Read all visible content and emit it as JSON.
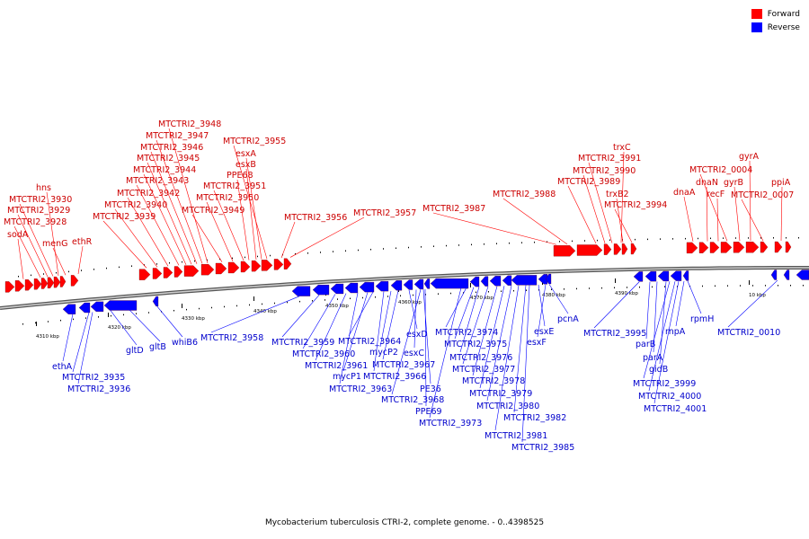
{
  "colors": {
    "forward": "#ff0000",
    "forward_label": "#cc0000",
    "reverse": "#0000ff",
    "reverse_label": "#0000cc",
    "backbone": "#888888"
  },
  "legend": [
    {
      "label": "Forward",
      "color": "#ff0000"
    },
    {
      "label": "Reverse",
      "color": "#0000ff"
    }
  ],
  "caption": "Mycobacterium tuberculosis CTRI-2, complete genome. - 0..4398525",
  "scale_labels": [
    "4310 kbp",
    "4320 kbp",
    "4330 kbp",
    "4340 kbp",
    "4350 kbp",
    "4360 kbp",
    "4370 kbp",
    "4380 kbp",
    "4390 kbp",
    "10 kbp"
  ],
  "forward_genes": [
    "sodA",
    "MTCTRI2_3928",
    "MTCTRI2_3929",
    "MTCTRI2_3930",
    "hns",
    "menG",
    "ethR",
    "MTCTRI2_3939",
    "MTCTRI2_3940",
    "MTCTRI2_3942",
    "MTCTRI2_3943",
    "MTCTRI2_3944",
    "MTCTRI2_3945",
    "MTCTRI2_3946",
    "MTCTRI2_3947",
    "MTCTRI2_3948",
    "MTCTRI2_3949",
    "MTCTRI2_3950",
    "MTCTRI2_3951",
    "PPE68",
    "esxB",
    "esxA",
    "MTCTRI2_3955",
    "MTCTRI2_3956",
    "MTCTRI2_3957",
    "MTCTRI2_3987",
    "MTCTRI2_3988",
    "MTCTRI2_3989",
    "MTCTRI2_3990",
    "MTCTRI2_3991",
    "trxC",
    "trxB2",
    "MTCTRI2_3994",
    "dnaA",
    "dnaN",
    "recF",
    "MTCTRI2_0004",
    "gyrB",
    "gyrA",
    "MTCTRI2_0007",
    "ppiA"
  ],
  "reverse_genes": [
    "ethA",
    "MTCTRI2_3935",
    "MTCTRI2_3936",
    "gltD",
    "gltB",
    "whiB6",
    "MTCTRI2_3958",
    "MTCTRI2_3959",
    "MTCTRI2_3960",
    "MTCTRI2_3961",
    "MTCTRI2_3963",
    "mycP1",
    "MTCTRI2_3964",
    "MTCTRI2_3966",
    "mycP2",
    "MTCTRI2_3967",
    "esxD",
    "esxC",
    "MTCTRI2_3968",
    "PE36",
    "PPE69",
    "MTCTRI2_3973",
    "MTCTRI2_3974",
    "MTCTRI2_3975",
    "MTCTRI2_3976",
    "MTCTRI2_3977",
    "MTCTRI2_3978",
    "MTCTRI2_3979",
    "MTCTRI2_3980",
    "MTCTRI2_3981",
    "MTCTRI2_3982",
    "MTCTRI2_3985",
    "esxE",
    "esxF",
    "pcnA",
    "MTCTRI2_3995",
    "parB",
    "parA",
    "gidB",
    "MTCTRI2_3999",
    "MTCTRI2_4000",
    "MTCTRI2_4001",
    "rnpA",
    "rpmH",
    "MTCTRI2_0010"
  ]
}
